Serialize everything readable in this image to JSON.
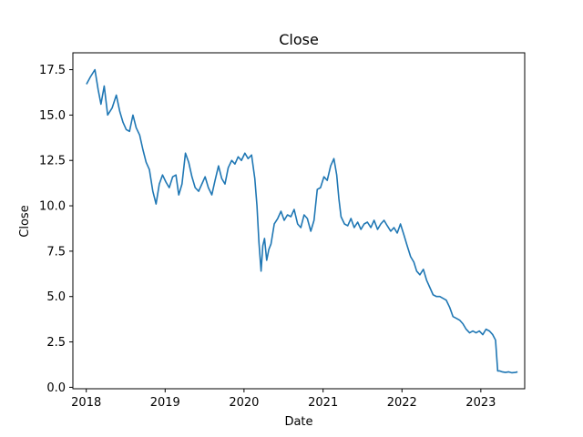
{
  "chart_data": {
    "type": "line",
    "title": "Close",
    "xlabel": "Date",
    "ylabel": "Close",
    "xlim": [
      "2017-10-31",
      "2023-07-23"
    ],
    "ylim": [
      -0.08,
      18.43
    ],
    "x_ticks": [
      "2018",
      "2019",
      "2020",
      "2021",
      "2022",
      "2023"
    ],
    "y_ticks": [
      "0.0",
      "2.5",
      "5.0",
      "7.5",
      "10.0",
      "12.5",
      "15.0",
      "17.5"
    ],
    "grid": false,
    "legend": "none",
    "series_color": "#1f77b4",
    "series": [
      {
        "x": [
          "2018-01-02",
          "2018-01-20",
          "2018-02-10",
          "2018-02-25",
          "2018-03-10",
          "2018-03-25",
          "2018-04-10",
          "2018-05-01",
          "2018-05-20",
          "2018-06-05",
          "2018-06-20",
          "2018-07-05",
          "2018-07-20",
          "2018-08-05",
          "2018-08-20",
          "2018-09-05",
          "2018-09-20",
          "2018-10-05",
          "2018-10-20",
          "2018-11-05",
          "2018-11-20",
          "2018-12-05",
          "2018-12-20",
          "2019-01-05",
          "2019-01-20",
          "2019-02-05",
          "2019-02-20",
          "2019-03-05",
          "2019-03-20",
          "2019-04-05",
          "2019-04-20",
          "2019-05-05",
          "2019-05-20",
          "2019-06-05",
          "2019-06-20",
          "2019-07-05",
          "2019-07-20",
          "2019-08-05",
          "2019-08-20",
          "2019-09-05",
          "2019-09-20",
          "2019-10-05",
          "2019-10-20",
          "2019-11-05",
          "2019-11-20",
          "2019-12-05",
          "2019-12-20",
          "2020-01-05",
          "2020-01-20",
          "2020-02-05",
          "2020-02-20",
          "2020-03-01",
          "2020-03-10",
          "2020-03-20",
          "2020-03-28",
          "2020-04-05",
          "2020-04-15",
          "2020-04-25",
          "2020-05-05",
          "2020-05-20",
          "2020-06-05",
          "2020-06-20",
          "2020-07-05",
          "2020-07-20",
          "2020-08-05",
          "2020-08-20",
          "2020-09-05",
          "2020-09-20",
          "2020-10-05",
          "2020-10-20",
          "2020-11-05",
          "2020-11-20",
          "2020-12-05",
          "2020-12-20",
          "2021-01-05",
          "2021-01-20",
          "2021-02-05",
          "2021-02-20",
          "2021-03-05",
          "2021-03-15",
          "2021-03-25",
          "2021-04-10",
          "2021-04-25",
          "2021-05-10",
          "2021-05-25",
          "2021-06-10",
          "2021-06-25",
          "2021-07-10",
          "2021-07-25",
          "2021-08-10",
          "2021-08-25",
          "2021-09-10",
          "2021-09-25",
          "2021-10-10",
          "2021-10-25",
          "2021-11-10",
          "2021-11-25",
          "2021-12-10",
          "2021-12-25",
          "2022-01-10",
          "2022-01-25",
          "2022-02-10",
          "2022-02-25",
          "2022-03-10",
          "2022-03-25",
          "2022-04-10",
          "2022-04-25",
          "2022-05-10",
          "2022-05-25",
          "2022-06-10",
          "2022-06-25",
          "2022-07-10",
          "2022-07-25",
          "2022-08-10",
          "2022-08-25",
          "2022-09-10",
          "2022-09-25",
          "2022-10-10",
          "2022-10-25",
          "2022-11-10",
          "2022-11-25",
          "2022-12-10",
          "2022-12-25",
          "2023-01-10",
          "2023-01-25",
          "2023-02-10",
          "2023-02-25",
          "2023-03-10",
          "2023-03-20",
          "2023-03-30",
          "2023-04-10",
          "2023-04-25",
          "2023-05-10",
          "2023-05-25",
          "2023-06-10",
          "2023-06-20"
        ],
        "y": [
          16.7,
          17.1,
          17.5,
          16.4,
          15.6,
          16.6,
          15.0,
          15.4,
          16.1,
          15.2,
          14.6,
          14.2,
          14.1,
          15.0,
          14.3,
          13.9,
          13.1,
          12.4,
          12.0,
          10.8,
          10.1,
          11.2,
          11.7,
          11.3,
          11.0,
          11.6,
          11.7,
          10.6,
          11.2,
          12.9,
          12.4,
          11.6,
          11.0,
          10.8,
          11.2,
          11.6,
          11.0,
          10.6,
          11.4,
          12.2,
          11.5,
          11.2,
          12.1,
          12.5,
          12.3,
          12.7,
          12.5,
          12.9,
          12.6,
          12.8,
          11.5,
          10.0,
          8.0,
          6.4,
          7.8,
          8.2,
          7.0,
          7.6,
          7.9,
          9.0,
          9.3,
          9.7,
          9.2,
          9.5,
          9.4,
          9.8,
          9.0,
          8.8,
          9.5,
          9.3,
          8.6,
          9.2,
          10.9,
          11.0,
          11.6,
          11.4,
          12.2,
          12.6,
          11.7,
          10.4,
          9.4,
          9.0,
          8.9,
          9.3,
          8.8,
          9.1,
          8.7,
          9.0,
          9.1,
          8.8,
          9.2,
          8.7,
          9.0,
          9.2,
          8.9,
          8.6,
          8.8,
          8.5,
          9.0,
          8.4,
          7.8,
          7.2,
          6.9,
          6.4,
          6.2,
          6.5,
          5.9,
          5.5,
          5.1,
          5.0,
          5.0,
          4.9,
          4.8,
          4.4,
          3.9,
          3.8,
          3.7,
          3.5,
          3.2,
          3.0,
          3.1,
          3.0,
          3.1,
          2.9,
          3.2,
          3.1,
          2.9,
          2.6,
          0.9,
          0.9,
          0.85,
          0.82,
          0.85,
          0.8,
          0.82,
          0.85
        ]
      }
    ]
  }
}
